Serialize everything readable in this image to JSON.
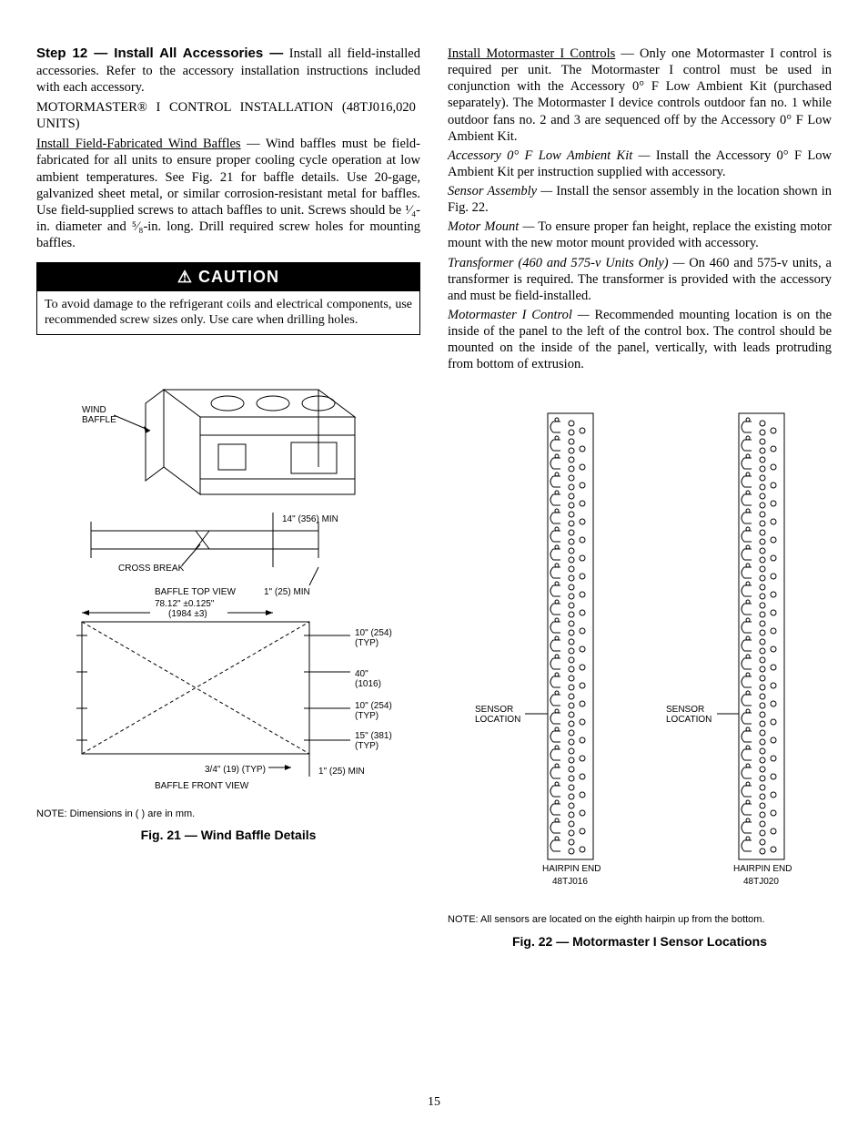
{
  "left": {
    "step_head": "Step 12 — Install All Accessories —",
    "step_body": "Install all field-installed accessories. Refer to the accessory installation instructions included with each accessory.",
    "motormaster_line": "MOTORMASTER® I CONTROL INSTALLATION (48TJ016,020 UNITS)",
    "baffle_head": "Install Field-Fabricated Wind Baffles",
    "baffle_body": " — Wind baffles must be field-fabricated for all units to ensure proper cooling cycle operation at low ambient temperatures. See Fig. 21 for baffle details. Use 20-gage, galvanized sheet metal, or similar corrosion-resistant metal for baffles. Use field-supplied screws to attach baffles to unit. Screws should be ¹⁄₄-in. diameter and ⁵⁄₈-in. long. Drill required screw holes for mounting baffles.",
    "caution_title": "⚠ CAUTION",
    "caution_body": "To avoid damage to the refrigerant coils and electrical components, use recommended screw sizes only. Use care when drilling holes."
  },
  "right": {
    "mm_head": "Install Motormaster I Controls",
    "mm_body": " — Only one Motormaster I control is required per unit. The Motormaster I control must be used in conjunction with the Accessory 0° F Low Ambient Kit (purchased separately). The Motormaster I device controls outdoor fan no. 1 while outdoor fans no. 2 and 3 are sequenced off by the Accessory 0° F Low Ambient Kit.",
    "acc_head": "Accessory 0° F Low Ambient Kit —",
    "acc_body": " Install the Accessory 0° F Low Ambient Kit per instruction supplied with accessory.",
    "sensor_head": "Sensor Assembly —",
    "sensor_body": " Install the sensor assembly in the location shown in Fig. 22.",
    "motor_head": "Motor Mount —",
    "motor_body": " To ensure proper fan height, replace the existing motor mount with the new motor mount provided with accessory.",
    "trans_head": "Transformer (460 and 575-v Units Only) —",
    "trans_body": " On 460 and 575-v units, a transformer is required. The transformer is provided with the accessory and must be field-installed.",
    "mmc_head": "Motormaster I Control —",
    "mmc_body": " Recommended mounting location is on the inside of the panel to the left of the control box. The control should be mounted on the inside of the panel, vertically, with leads protruding from bottom of extrusion."
  },
  "fig21": {
    "caption": "Fig. 21 — Wind Baffle Details",
    "note": "NOTE: Dimensions in (  ) are in mm.",
    "labels": {
      "wind_baffle": "WIND\nBAFFLE",
      "cross_break": "CROSS BREAK",
      "top_view": "BAFFLE TOP VIEW",
      "front_view": "BAFFLE FRONT VIEW",
      "dim_78": "78.12\" ±0.125\"\n(1984 ±3)",
      "dim_14": "14\" (356) MIN",
      "dim_1_a": "1\" (25) MIN",
      "dim_1_b": "1\" (25) MIN",
      "dim_10a": "10\" (254)\n(TYP)",
      "dim_40": "40\"\n(1016)",
      "dim_10b": "10\" (254)\n(TYP)",
      "dim_15": "15\" (381)\n(TYP)",
      "dim_34": "3/4\" (19) (TYP)"
    }
  },
  "fig22": {
    "caption": "Fig. 22 — Motormaster I Sensor Locations",
    "note": "NOTE: All sensors are located on the eighth hairpin up from the bottom.",
    "sensor_loc": "SENSOR\nLOCATION",
    "hairpin": "HAIRPIN END",
    "model_a": "48TJ016",
    "model_b": "48TJ020"
  },
  "page": "15"
}
